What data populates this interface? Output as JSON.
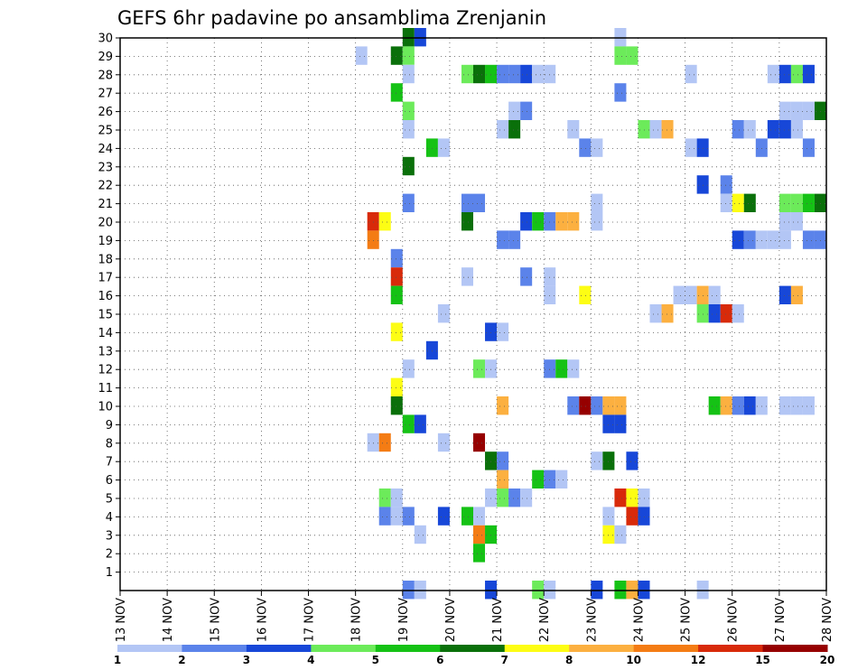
{
  "chart_data": {
    "type": "heatmap",
    "title": "GEFS 6hr padavine po ansamblima Zrenjanin",
    "x_axis": {
      "tick_labels": [
        "13 NOV",
        "14 NOV",
        "15 NOV",
        "16 NOV",
        "17 NOV",
        "18 NOV",
        "19 NOV",
        "20 NOV",
        "21 NOV",
        "22 NOV",
        "23 NOV",
        "24 NOV",
        "25 NOV",
        "26 NOV",
        "27 NOV",
        "28 NOV"
      ],
      "range_days": [
        13,
        28
      ],
      "step": "6h"
    },
    "y_axis": {
      "tick_labels": [
        "1",
        "2",
        "3",
        "4",
        "5",
        "6",
        "7",
        "8",
        "9",
        "10",
        "11",
        "12",
        "13",
        "14",
        "15",
        "16",
        "17",
        "18",
        "19",
        "20",
        "21",
        "22",
        "23",
        "24",
        "25",
        "26",
        "27",
        "28",
        "29",
        "30"
      ],
      "range": [
        0,
        30
      ]
    },
    "grid": "dotted",
    "colorbar": {
      "labels": [
        "1",
        "2",
        "3",
        "4",
        "5",
        "6",
        "7",
        "8",
        "10",
        "12",
        "15",
        "20"
      ],
      "colors": [
        "#b3c6f5",
        "#5b83ea",
        "#1747d8",
        "#6ceb5a",
        "#15c215",
        "#0a700a",
        "#fdfd14",
        "#fcb040",
        "#f47c14",
        "#d82a0a",
        "#960000"
      ]
    },
    "cells": [
      {
        "t": 19.0,
        "m": 30,
        "c": 6
      },
      {
        "t": 19.25,
        "m": 30,
        "c": 3
      },
      {
        "t": 23.5,
        "m": 30,
        "c": 1
      },
      {
        "t": 18.0,
        "m": 29,
        "c": 1
      },
      {
        "t": 18.75,
        "m": 29,
        "c": 6
      },
      {
        "t": 19.0,
        "m": 29,
        "c": 4
      },
      {
        "t": 23.5,
        "m": 29,
        "c": 4
      },
      {
        "t": 23.75,
        "m": 29,
        "c": 4
      },
      {
        "t": 19.0,
        "m": 28,
        "c": 1
      },
      {
        "t": 20.25,
        "m": 28,
        "c": 4
      },
      {
        "t": 20.5,
        "m": 28,
        "c": 6
      },
      {
        "t": 20.75,
        "m": 28,
        "c": 5
      },
      {
        "t": 21.0,
        "m": 28,
        "c": 2
      },
      {
        "t": 21.25,
        "m": 28,
        "c": 2
      },
      {
        "t": 21.5,
        "m": 28,
        "c": 3
      },
      {
        "t": 21.75,
        "m": 28,
        "c": 1
      },
      {
        "t": 22.0,
        "m": 28,
        "c": 1
      },
      {
        "t": 25.0,
        "m": 28,
        "c": 1
      },
      {
        "t": 26.75,
        "m": 28,
        "c": 1
      },
      {
        "t": 27.0,
        "m": 28,
        "c": 3
      },
      {
        "t": 27.25,
        "m": 28,
        "c": 4
      },
      {
        "t": 27.5,
        "m": 28,
        "c": 3
      },
      {
        "t": 18.75,
        "m": 27,
        "c": 5
      },
      {
        "t": 23.5,
        "m": 27,
        "c": 2
      },
      {
        "t": 19.0,
        "m": 26,
        "c": 4
      },
      {
        "t": 21.25,
        "m": 26,
        "c": 1
      },
      {
        "t": 21.5,
        "m": 26,
        "c": 2
      },
      {
        "t": 27.0,
        "m": 26,
        "c": 1
      },
      {
        "t": 27.25,
        "m": 26,
        "c": 1
      },
      {
        "t": 27.5,
        "m": 26,
        "c": 1
      },
      {
        "t": 27.75,
        "m": 26,
        "c": 6
      },
      {
        "t": 19.0,
        "m": 25,
        "c": 1
      },
      {
        "t": 21.0,
        "m": 25,
        "c": 1
      },
      {
        "t": 21.25,
        "m": 25,
        "c": 6
      },
      {
        "t": 22.5,
        "m": 25,
        "c": 1
      },
      {
        "t": 24.0,
        "m": 25,
        "c": 4
      },
      {
        "t": 24.25,
        "m": 25,
        "c": 1
      },
      {
        "t": 24.5,
        "m": 25,
        "c": 8
      },
      {
        "t": 26.0,
        "m": 25,
        "c": 2
      },
      {
        "t": 26.25,
        "m": 25,
        "c": 1
      },
      {
        "t": 26.75,
        "m": 25,
        "c": 3
      },
      {
        "t": 27.0,
        "m": 25,
        "c": 3
      },
      {
        "t": 27.25,
        "m": 25,
        "c": 1
      },
      {
        "t": 19.5,
        "m": 24,
        "c": 5
      },
      {
        "t": 19.75,
        "m": 24,
        "c": 1
      },
      {
        "t": 22.75,
        "m": 24,
        "c": 2
      },
      {
        "t": 23.0,
        "m": 24,
        "c": 1
      },
      {
        "t": 25.0,
        "m": 24,
        "c": 1
      },
      {
        "t": 25.25,
        "m": 24,
        "c": 3
      },
      {
        "t": 26.5,
        "m": 24,
        "c": 2
      },
      {
        "t": 27.5,
        "m": 24,
        "c": 2
      },
      {
        "t": 19.0,
        "m": 23,
        "c": 6
      },
      {
        "t": 25.25,
        "m": 22,
        "c": 3
      },
      {
        "t": 25.75,
        "m": 22,
        "c": 2
      },
      {
        "t": 19.0,
        "m": 21,
        "c": 2
      },
      {
        "t": 20.25,
        "m": 21,
        "c": 2
      },
      {
        "t": 20.5,
        "m": 21,
        "c": 2
      },
      {
        "t": 23.0,
        "m": 21,
        "c": 1
      },
      {
        "t": 25.75,
        "m": 21,
        "c": 1
      },
      {
        "t": 26.0,
        "m": 21,
        "c": 7
      },
      {
        "t": 26.25,
        "m": 21,
        "c": 6
      },
      {
        "t": 27.0,
        "m": 21,
        "c": 4
      },
      {
        "t": 27.25,
        "m": 21,
        "c": 4
      },
      {
        "t": 27.5,
        "m": 21,
        "c": 5
      },
      {
        "t": 27.75,
        "m": 21,
        "c": 6
      },
      {
        "t": 18.25,
        "m": 20,
        "c": 10
      },
      {
        "t": 18.5,
        "m": 20,
        "c": 7
      },
      {
        "t": 20.25,
        "m": 20,
        "c": 6
      },
      {
        "t": 21.5,
        "m": 20,
        "c": 3
      },
      {
        "t": 21.75,
        "m": 20,
        "c": 5
      },
      {
        "t": 22.0,
        "m": 20,
        "c": 2
      },
      {
        "t": 22.25,
        "m": 20,
        "c": 8
      },
      {
        "t": 22.5,
        "m": 20,
        "c": 8
      },
      {
        "t": 23.0,
        "m": 20,
        "c": 1
      },
      {
        "t": 27.0,
        "m": 20,
        "c": 1
      },
      {
        "t": 27.25,
        "m": 20,
        "c": 1
      },
      {
        "t": 18.25,
        "m": 19,
        "c": 9
      },
      {
        "t": 21.0,
        "m": 19,
        "c": 2
      },
      {
        "t": 21.25,
        "m": 19,
        "c": 2
      },
      {
        "t": 26.0,
        "m": 19,
        "c": 3
      },
      {
        "t": 26.25,
        "m": 19,
        "c": 2
      },
      {
        "t": 26.5,
        "m": 19,
        "c": 1
      },
      {
        "t": 26.75,
        "m": 19,
        "c": 1
      },
      {
        "t": 27.0,
        "m": 19,
        "c": 1
      },
      {
        "t": 27.5,
        "m": 19,
        "c": 2
      },
      {
        "t": 27.75,
        "m": 19,
        "c": 2
      },
      {
        "t": 18.75,
        "m": 18,
        "c": 2
      },
      {
        "t": 18.75,
        "m": 17,
        "c": 10
      },
      {
        "t": 20.25,
        "m": 17,
        "c": 1
      },
      {
        "t": 21.5,
        "m": 17,
        "c": 2
      },
      {
        "t": 22.0,
        "m": 17,
        "c": 1
      },
      {
        "t": 18.75,
        "m": 16,
        "c": 5
      },
      {
        "t": 22.0,
        "m": 16,
        "c": 1
      },
      {
        "t": 22.75,
        "m": 16,
        "c": 7
      },
      {
        "t": 24.75,
        "m": 16,
        "c": 1
      },
      {
        "t": 25.0,
        "m": 16,
        "c": 1
      },
      {
        "t": 25.25,
        "m": 16,
        "c": 8
      },
      {
        "t": 25.5,
        "m": 16,
        "c": 1
      },
      {
        "t": 27.0,
        "m": 16,
        "c": 3
      },
      {
        "t": 27.25,
        "m": 16,
        "c": 8
      },
      {
        "t": 19.75,
        "m": 15,
        "c": 1
      },
      {
        "t": 24.25,
        "m": 15,
        "c": 1
      },
      {
        "t": 24.5,
        "m": 15,
        "c": 8
      },
      {
        "t": 25.25,
        "m": 15,
        "c": 4
      },
      {
        "t": 25.5,
        "m": 15,
        "c": 3
      },
      {
        "t": 25.75,
        "m": 15,
        "c": 10
      },
      {
        "t": 26.0,
        "m": 15,
        "c": 1
      },
      {
        "t": 18.75,
        "m": 14,
        "c": 7
      },
      {
        "t": 20.75,
        "m": 14,
        "c": 3
      },
      {
        "t": 21.0,
        "m": 14,
        "c": 1
      },
      {
        "t": 19.5,
        "m": 13,
        "c": 3
      },
      {
        "t": 19.0,
        "m": 12,
        "c": 1
      },
      {
        "t": 20.5,
        "m": 12,
        "c": 4
      },
      {
        "t": 20.75,
        "m": 12,
        "c": 1
      },
      {
        "t": 22.0,
        "m": 12,
        "c": 2
      },
      {
        "t": 22.25,
        "m": 12,
        "c": 5
      },
      {
        "t": 22.5,
        "m": 12,
        "c": 1
      },
      {
        "t": 18.75,
        "m": 11,
        "c": 7
      },
      {
        "t": 18.75,
        "m": 10,
        "c": 6
      },
      {
        "t": 21.0,
        "m": 10,
        "c": 8
      },
      {
        "t": 22.5,
        "m": 10,
        "c": 2
      },
      {
        "t": 22.75,
        "m": 10,
        "c": 11
      },
      {
        "t": 23.0,
        "m": 10,
        "c": 2
      },
      {
        "t": 23.25,
        "m": 10,
        "c": 8
      },
      {
        "t": 23.5,
        "m": 10,
        "c": 8
      },
      {
        "t": 25.5,
        "m": 10,
        "c": 5
      },
      {
        "t": 25.75,
        "m": 10,
        "c": 8
      },
      {
        "t": 26.0,
        "m": 10,
        "c": 2
      },
      {
        "t": 26.25,
        "m": 10,
        "c": 3
      },
      {
        "t": 26.5,
        "m": 10,
        "c": 1
      },
      {
        "t": 27.0,
        "m": 10,
        "c": 1
      },
      {
        "t": 27.25,
        "m": 10,
        "c": 1
      },
      {
        "t": 27.5,
        "m": 10,
        "c": 1
      },
      {
        "t": 19.0,
        "m": 9,
        "c": 5
      },
      {
        "t": 19.25,
        "m": 9,
        "c": 3
      },
      {
        "t": 23.25,
        "m": 9,
        "c": 3
      },
      {
        "t": 23.5,
        "m": 9,
        "c": 3
      },
      {
        "t": 18.25,
        "m": 8,
        "c": 1
      },
      {
        "t": 18.5,
        "m": 8,
        "c": 9
      },
      {
        "t": 19.75,
        "m": 8,
        "c": 1
      },
      {
        "t": 20.5,
        "m": 8,
        "c": 11
      },
      {
        "t": 20.75,
        "m": 7,
        "c": 6
      },
      {
        "t": 21.0,
        "m": 7,
        "c": 2
      },
      {
        "t": 23.0,
        "m": 7,
        "c": 1
      },
      {
        "t": 23.25,
        "m": 7,
        "c": 6
      },
      {
        "t": 23.75,
        "m": 7,
        "c": 3
      },
      {
        "t": 21.0,
        "m": 6,
        "c": 8
      },
      {
        "t": 21.75,
        "m": 6,
        "c": 5
      },
      {
        "t": 22.0,
        "m": 6,
        "c": 2
      },
      {
        "t": 22.25,
        "m": 6,
        "c": 1
      },
      {
        "t": 18.5,
        "m": 5,
        "c": 4
      },
      {
        "t": 18.75,
        "m": 5,
        "c": 1
      },
      {
        "t": 20.75,
        "m": 5,
        "c": 1
      },
      {
        "t": 21.0,
        "m": 5,
        "c": 4
      },
      {
        "t": 21.25,
        "m": 5,
        "c": 2
      },
      {
        "t": 21.5,
        "m": 5,
        "c": 1
      },
      {
        "t": 23.5,
        "m": 5,
        "c": 10
      },
      {
        "t": 23.75,
        "m": 5,
        "c": 7
      },
      {
        "t": 24.0,
        "m": 5,
        "c": 1
      },
      {
        "t": 18.5,
        "m": 4,
        "c": 2
      },
      {
        "t": 18.75,
        "m": 4,
        "c": 1
      },
      {
        "t": 19.0,
        "m": 4,
        "c": 2
      },
      {
        "t": 19.75,
        "m": 4,
        "c": 3
      },
      {
        "t": 20.25,
        "m": 4,
        "c": 5
      },
      {
        "t": 20.5,
        "m": 4,
        "c": 1
      },
      {
        "t": 23.25,
        "m": 4,
        "c": 1
      },
      {
        "t": 23.75,
        "m": 4,
        "c": 10
      },
      {
        "t": 24.0,
        "m": 4,
        "c": 3
      },
      {
        "t": 19.25,
        "m": 3,
        "c": 1
      },
      {
        "t": 20.5,
        "m": 3,
        "c": 9
      },
      {
        "t": 20.75,
        "m": 3,
        "c": 5
      },
      {
        "t": 23.25,
        "m": 3,
        "c": 7
      },
      {
        "t": 23.5,
        "m": 3,
        "c": 1
      },
      {
        "t": 20.5,
        "m": 2,
        "c": 5
      },
      {
        "t": 19.0,
        "m": 0,
        "c": 2
      },
      {
        "t": 19.25,
        "m": 0,
        "c": 1
      },
      {
        "t": 20.75,
        "m": 0,
        "c": 3
      },
      {
        "t": 21.75,
        "m": 0,
        "c": 4
      },
      {
        "t": 22.0,
        "m": 0,
        "c": 1
      },
      {
        "t": 23.0,
        "m": 0,
        "c": 3
      },
      {
        "t": 23.5,
        "m": 0,
        "c": 5
      },
      {
        "t": 23.75,
        "m": 0,
        "c": 8
      },
      {
        "t": 24.0,
        "m": 0,
        "c": 3
      },
      {
        "t": 25.25,
        "m": 0,
        "c": 1
      }
    ]
  }
}
